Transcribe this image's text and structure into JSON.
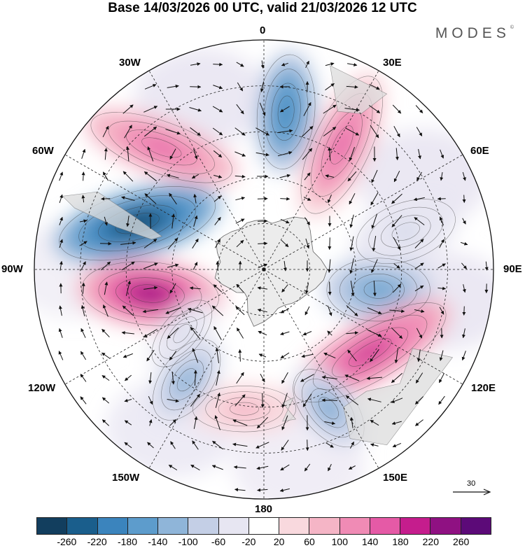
{
  "title": "Base 14/03/2026 00 UTC, valid 21/03/2026 12 UTC",
  "brand": "MODES",
  "brand_mark": "©",
  "longitude_labels": {
    "n0": "0",
    "e30": "30E",
    "e60": "60E",
    "e90": "90E",
    "e120": "120E",
    "e150": "150E",
    "s180": "180",
    "w150": "150W",
    "w120": "120W",
    "w90": "90W",
    "w60": "60W",
    "w30": "30W"
  },
  "reference_vector": "30",
  "colorbar": {
    "colors": [
      "#123e5e",
      "#1a5e8c",
      "#3b84bd",
      "#5d9ccc",
      "#8fb5d9",
      "#c4cfe6",
      "#e7e6f2",
      "#ffffff",
      "#f9d9de",
      "#f5b5c6",
      "#f08bb5",
      "#e55aa6",
      "#c51d8d",
      "#8f1182",
      "#5c0a78"
    ],
    "ticks": [
      "-260",
      "-220",
      "-180",
      "-140",
      "-100",
      "-60",
      "-20",
      "20",
      "60",
      "100",
      "140",
      "180",
      "220",
      "260"
    ]
  },
  "anomalies": [
    {
      "name": "neg-90w",
      "lon": -70,
      "lat": -46,
      "rx": 28,
      "ry": 11,
      "rot": -15,
      "value": -270
    },
    {
      "name": "pos-100w",
      "lon": -102,
      "lat": -52,
      "rx": 24,
      "ry": 11,
      "rot": 5,
      "value": 250
    },
    {
      "name": "neg-5e",
      "lon": 8,
      "lat": -38,
      "rx": 10,
      "ry": 20,
      "rot": 5,
      "value": -200
    },
    {
      "name": "pos-40w",
      "lon": -40,
      "lat": -38,
      "rx": 26,
      "ry": 9,
      "rot": 20,
      "value": 160
    },
    {
      "name": "pos-30e",
      "lon": 32,
      "lat": -42,
      "rx": 10,
      "ry": 26,
      "rot": 25,
      "value": 150
    },
    {
      "name": "neg-100e",
      "lon": 100,
      "lat": -52,
      "rx": 18,
      "ry": 11,
      "rot": 0,
      "value": -150
    },
    {
      "name": "pos-135e",
      "lon": 128,
      "lat": -46,
      "rx": 30,
      "ry": 10,
      "rot": -30,
      "value": 190
    },
    {
      "name": "neg-155e",
      "lon": 155,
      "lat": -40,
      "rx": 16,
      "ry": 9,
      "rot": 50,
      "value": -140
    },
    {
      "name": "pos-175w",
      "lon": -172,
      "lat": -44,
      "rx": 18,
      "ry": 8,
      "rot": 0,
      "value": 80
    },
    {
      "name": "neg-145w",
      "lon": -145,
      "lat": -46,
      "rx": 16,
      "ry": 9,
      "rot": -55,
      "value": -120
    },
    {
      "name": "neg-75e",
      "lon": 75,
      "lat": -42,
      "rx": 18,
      "ry": 10,
      "rot": -20,
      "value": -60
    },
    {
      "name": "neg-130w",
      "lon": -128,
      "lat": -56,
      "rx": 14,
      "ry": 7,
      "rot": -50,
      "value": -70
    }
  ]
}
